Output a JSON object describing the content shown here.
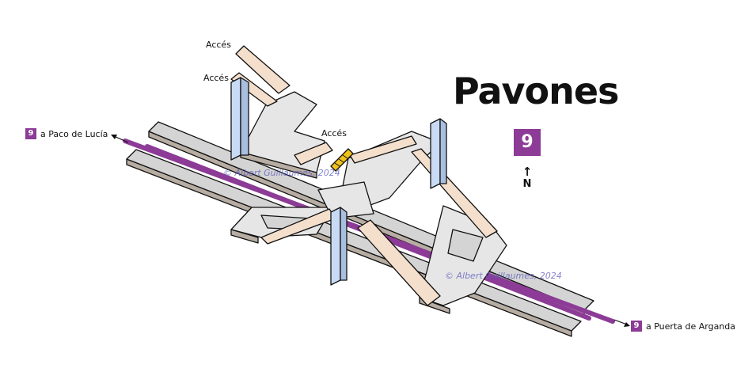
{
  "station": {
    "name": "Pavones",
    "line": "9"
  },
  "compass": {
    "label": "N",
    "icon": "north-arrow-icon"
  },
  "destinations": {
    "west": {
      "line": "9",
      "text": "a Paco de Lucía"
    },
    "east": {
      "line": "9",
      "text": "a Puerta de Arganda"
    }
  },
  "accesses": [
    "Accés",
    "Accés",
    "Accés"
  ],
  "watermark": "© Albert Guillaumes, 2024",
  "colors": {
    "line9": "#8c3b96",
    "platform": "#d4d4d4",
    "concourse": "#e9e9e9",
    "ramp": "#f4dfcc",
    "lift": "#c8daf4",
    "escalator": "#f1c21b",
    "outline": "#111111"
  }
}
